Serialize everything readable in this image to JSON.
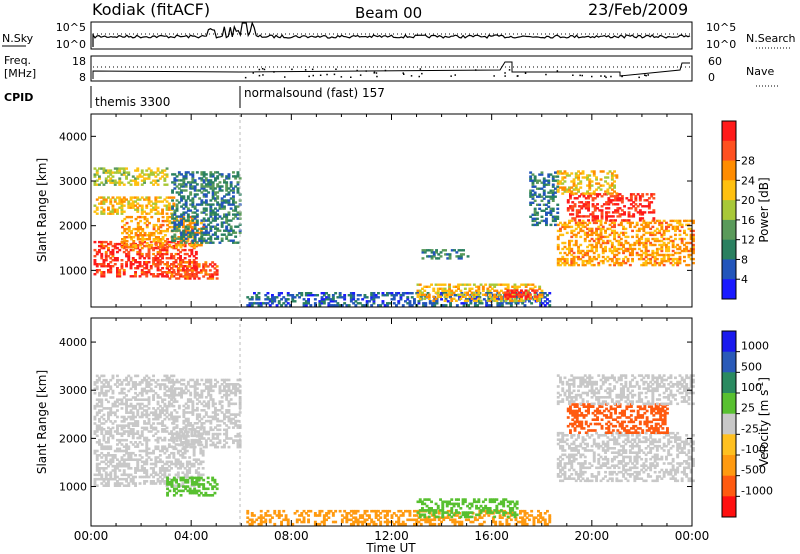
{
  "header": {
    "station": "Kodiak (fitACF)",
    "beam": "Beam 00",
    "date": "23/Feb/2009"
  },
  "top_panels": {
    "nsky": {
      "label": "N.Sky",
      "ticks": [
        "10^5",
        "10^0"
      ]
    },
    "nsearch": {
      "label": "N.Search",
      "ticks": [
        "10^5",
        "10^0"
      ]
    },
    "freq": {
      "label_line1": "Freq.",
      "label_line2": "[MHz]",
      "ticks": [
        "18",
        "8"
      ]
    },
    "nave": {
      "label": "Nave",
      "ticks": [
        "60",
        "0"
      ]
    },
    "cpid": {
      "label": "CPID",
      "modes": [
        "themis 3300",
        "normalsound (fast) 157"
      ]
    }
  },
  "colors": {
    "power": [
      "#1a1aff",
      "#2255bb",
      "#2a8060",
      "#5a9a5a",
      "#a8c838",
      "#ffc010",
      "#ff8c00",
      "#ff5020",
      "#ff1a1a"
    ],
    "velocity": [
      "#ff1010",
      "#ff5a10",
      "#ff9a10",
      "#ffc020",
      "#c8c8c8",
      "#58c030",
      "#2a8a60",
      "#2a5ab8",
      "#1a1aee"
    ]
  },
  "chart_data": [
    {
      "type": "heatmap",
      "title": "",
      "xlabel": "Time UT",
      "ylabel": "Slant Range [km]",
      "xlim": [
        0,
        24
      ],
      "ylim": [
        180,
        4500
      ],
      "xticks": [
        "00:00",
        "04:00",
        "08:00",
        "12:00",
        "16:00",
        "20:00",
        "00:00"
      ],
      "yticks": [
        "1000",
        "2000",
        "3000",
        "4000"
      ],
      "colorbar": {
        "label": "Power [dB]",
        "ticks": [
          "4",
          "8",
          "12",
          "16",
          "20",
          "24",
          "28"
        ],
        "range": [
          0,
          32
        ]
      },
      "regions": [
        {
          "t0": 0.1,
          "t1": 4.2,
          "r0": 850,
          "r1": 1650,
          "v": 28
        },
        {
          "t0": 1.2,
          "t1": 4.5,
          "r0": 1500,
          "r1": 2200,
          "v": 22
        },
        {
          "t0": 0.1,
          "t1": 3.3,
          "r0": 2250,
          "r1": 2650,
          "v": 20
        },
        {
          "t0": 0.1,
          "t1": 3.0,
          "r0": 2900,
          "r1": 3300,
          "v": 17
        },
        {
          "t0": 3.2,
          "t1": 5.9,
          "r0": 1600,
          "r1": 3200,
          "v": 9
        },
        {
          "t0": 3.0,
          "t1": 5.0,
          "r0": 800,
          "r1": 1200,
          "v": 26
        },
        {
          "t0": 6.2,
          "t1": 18.3,
          "r0": 200,
          "r1": 480,
          "v": 6
        },
        {
          "t0": 13.0,
          "t1": 18.0,
          "r0": 300,
          "r1": 700,
          "v": 20
        },
        {
          "t0": 16.5,
          "t1": 17.8,
          "r0": 350,
          "r1": 550,
          "v": 29
        },
        {
          "t0": 13.2,
          "t1": 15.0,
          "r0": 1250,
          "r1": 1450,
          "v": 9
        },
        {
          "t0": 17.5,
          "t1": 18.6,
          "r0": 2000,
          "r1": 3200,
          "v": 8
        },
        {
          "t0": 18.6,
          "t1": 24.0,
          "r0": 1100,
          "r1": 2100,
          "v": 22
        },
        {
          "t0": 19.0,
          "t1": 22.5,
          "r0": 2100,
          "r1": 2700,
          "v": 29
        },
        {
          "t0": 18.6,
          "t1": 21.0,
          "r0": 2700,
          "r1": 3200,
          "v": 20
        }
      ]
    },
    {
      "type": "heatmap",
      "title": "",
      "xlabel": "Time UT",
      "ylabel": "Slant Range [km]",
      "xlim": [
        0,
        24
      ],
      "ylim": [
        180,
        4500
      ],
      "xticks": [
        "00:00",
        "04:00",
        "08:00",
        "12:00",
        "16:00",
        "20:00",
        "00:00"
      ],
      "yticks": [
        "1000",
        "2000",
        "3000",
        "4000"
      ],
      "colorbar": {
        "label": "Velocity [m s^-1]",
        "ticks": [
          "1000",
          "500",
          "100",
          "25",
          "-25",
          "-100",
          "-500",
          "-1000"
        ]
      },
      "regions": [
        {
          "t0": 0.1,
          "t1": 4.5,
          "r0": 1000,
          "r1": 2200,
          "v": 0
        },
        {
          "t0": 0.1,
          "t1": 3.3,
          "r0": 2200,
          "r1": 3300,
          "v": 0
        },
        {
          "t0": 3.2,
          "t1": 5.9,
          "r0": 1800,
          "r1": 3200,
          "v": 0
        },
        {
          "t0": 3.0,
          "t1": 5.0,
          "r0": 800,
          "r1": 1200,
          "v": 80
        },
        {
          "t0": 6.2,
          "t1": 18.3,
          "r0": 200,
          "r1": 500,
          "v": -60
        },
        {
          "t0": 13.0,
          "t1": 17.0,
          "r0": 350,
          "r1": 750,
          "v": 60
        },
        {
          "t0": 18.6,
          "t1": 24.0,
          "r0": 1100,
          "r1": 2100,
          "v": 0
        },
        {
          "t0": 19.0,
          "t1": 23.0,
          "r0": 2100,
          "r1": 2700,
          "v": -150
        },
        {
          "t0": 18.6,
          "t1": 24.0,
          "r0": 2700,
          "r1": 3300,
          "v": 0
        }
      ]
    }
  ]
}
